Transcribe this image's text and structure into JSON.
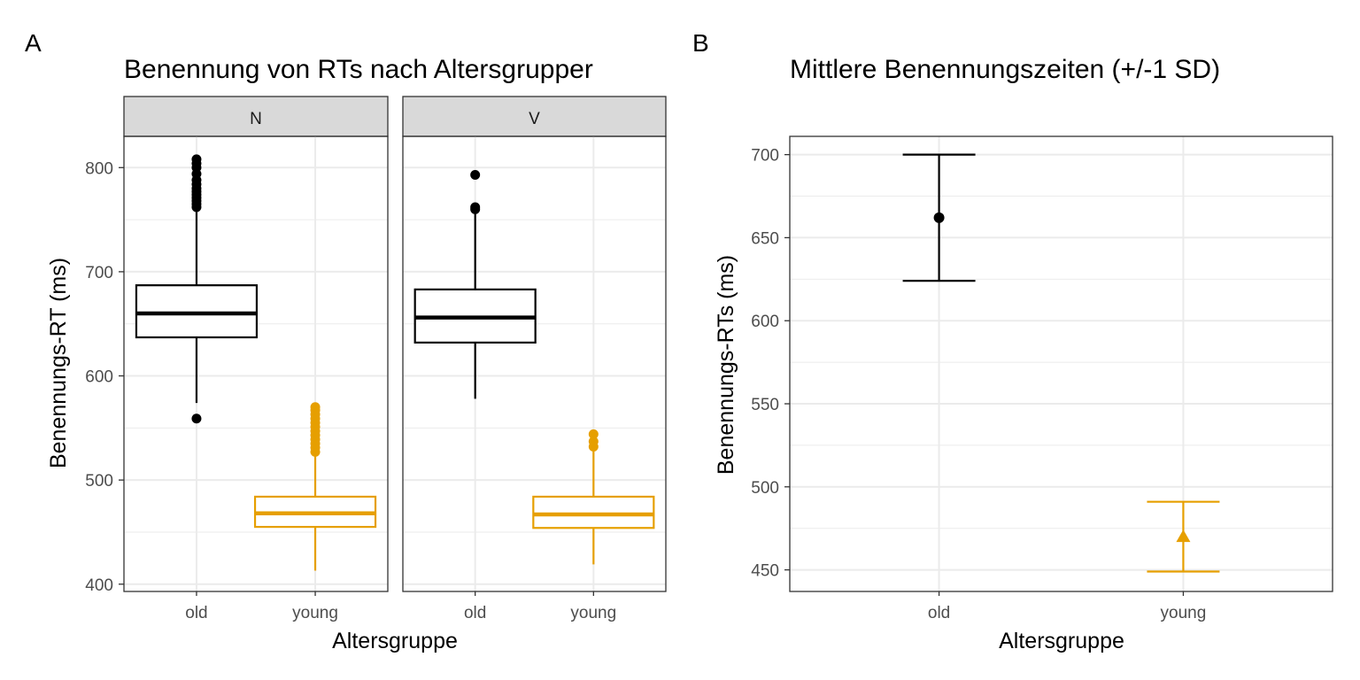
{
  "panel_a": {
    "tag": "A",
    "title": "Benennung von RTs nach Altersgrupper",
    "xlabel": "Altersgruppe",
    "ylabel": "Benennungs-RT (ms)"
  },
  "panel_b": {
    "tag": "B",
    "title": "Mittlere Benennungszeiten (+/-1 SD)",
    "xlabel": "Altersgruppe",
    "ylabel": "Benennungs-RTs (ms)"
  },
  "colors": {
    "old": "#000000",
    "young": "#E69F00",
    "grid": "#ebebeb",
    "strip": "#d9d9d9",
    "border": "#333333"
  },
  "chart_data": [
    {
      "type": "box",
      "title": "Benennung von RTs nach Altersgrupper",
      "xlabel": "Altersgruppe",
      "ylabel": "Benennungs-RT (ms)",
      "ylim": [
        393,
        830
      ],
      "yticks": [
        400,
        500,
        600,
        700,
        800
      ],
      "categories": [
        "old",
        "young"
      ],
      "grid": true,
      "facets": [
        {
          "label": "N",
          "boxes": [
            {
              "group": "old",
              "whisker_low": 574,
              "q1": 637,
              "median": 660,
              "q3": 687,
              "whisker_high": 760,
              "outliers": [
                559,
                762,
                765,
                768,
                771,
                774,
                777,
                780,
                784,
                788,
                794,
                800,
                804,
                808
              ]
            },
            {
              "group": "young",
              "whisker_low": 413,
              "q1": 455,
              "median": 468,
              "q3": 484,
              "whisker_high": 526,
              "outliers": [
                527,
                531,
                535,
                539,
                543,
                547,
                551,
                555,
                559,
                563,
                567,
                570
              ]
            }
          ]
        },
        {
          "label": "V",
          "boxes": [
            {
              "group": "old",
              "whisker_low": 578,
              "q1": 632,
              "median": 656,
              "q3": 683,
              "whisker_high": 759,
              "outliers": [
                760,
                762,
                793
              ]
            },
            {
              "group": "young",
              "whisker_low": 419,
              "q1": 454,
              "median": 467,
              "q3": 484,
              "whisker_high": 530,
              "outliers": [
                532,
                537,
                544
              ]
            }
          ]
        }
      ]
    },
    {
      "type": "errorbar",
      "title": "Mittlere Benennungszeiten (+/-1 SD)",
      "xlabel": "Altersgruppe",
      "ylabel": "Benennungs-RTs (ms)",
      "ylim": [
        437,
        711
      ],
      "yticks": [
        450,
        500,
        550,
        600,
        650,
        700
      ],
      "categories": [
        "old",
        "young"
      ],
      "grid": true,
      "points": [
        {
          "group": "old",
          "mean": 662,
          "low": 624,
          "high": 700,
          "marker": "circle"
        },
        {
          "group": "young",
          "mean": 470,
          "low": 449,
          "high": 491,
          "marker": "triangle"
        }
      ]
    }
  ]
}
